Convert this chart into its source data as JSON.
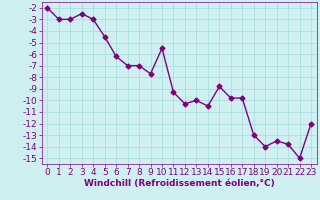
{
  "x": [
    0,
    1,
    2,
    3,
    4,
    5,
    6,
    7,
    8,
    9,
    10,
    11,
    12,
    13,
    14,
    15,
    16,
    17,
    18,
    19,
    20,
    21,
    22,
    23
  ],
  "y": [
    -2,
    -3,
    -3,
    -2.5,
    -3,
    -4.5,
    -6.2,
    -7,
    -7,
    -7.7,
    -5.5,
    -9.3,
    -10.3,
    -10,
    -10.5,
    -8.8,
    -9.8,
    -9.8,
    -13,
    -14,
    -13.5,
    -13.8,
    -15,
    -12
  ],
  "line_color": "#800080",
  "marker": "D",
  "marker_size": 2.5,
  "bg_color": "#cff0f0",
  "grid_color": "#aadddd",
  "xlabel": "Windchill (Refroidissement éolien,°C)",
  "ylim": [
    -15.5,
    -1.5
  ],
  "xlim": [
    -0.5,
    23.5
  ],
  "yticks": [
    -2,
    -3,
    -4,
    -5,
    -6,
    -7,
    -8,
    -9,
    -10,
    -11,
    -12,
    -13,
    -14,
    -15
  ],
  "xticks": [
    0,
    1,
    2,
    3,
    4,
    5,
    6,
    7,
    8,
    9,
    10,
    11,
    12,
    13,
    14,
    15,
    16,
    17,
    18,
    19,
    20,
    21,
    22,
    23
  ],
  "line_width": 1.0,
  "font_size": 6.5
}
